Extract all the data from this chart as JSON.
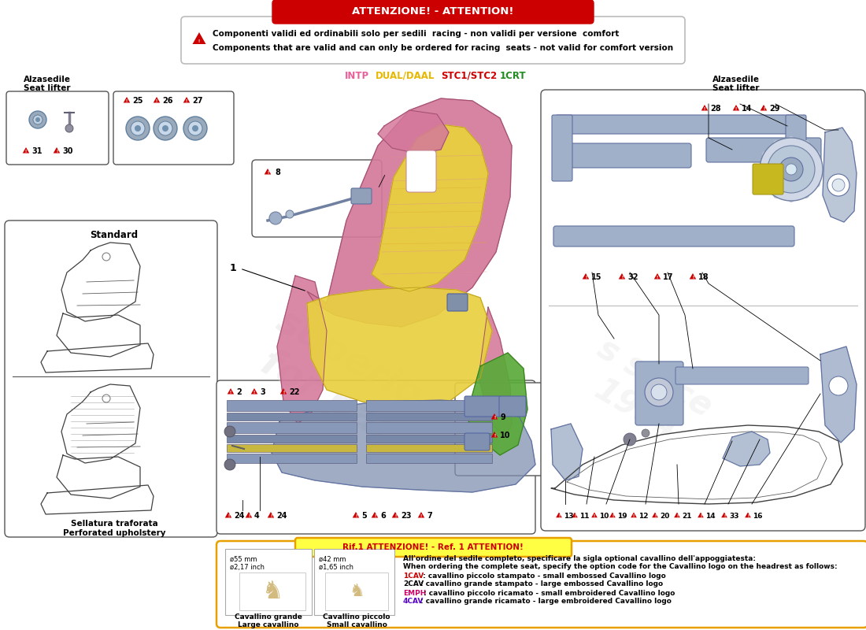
{
  "title_attention": "ATTENZIONE! - ATTENTION!",
  "warning_text_line1": "Componenti validi ed ordinabili solo per sedili  racing - non validi per versione  comfort",
  "warning_text_line2": "Components that are valid and can only be ordered for racing  seats - not valid for comfort version",
  "legend_intp": "INTP",
  "legend_dual": "DUAL/DAAL",
  "legend_stc": "STC1/STC2",
  "legend_1crt": "1CRT",
  "alzasedile_left_1": "Alzasedile",
  "alzasedile_left_2": "Seat lifter",
  "alzasedile_right_1": "Alzasedile",
  "alzasedile_right_2": "Seat lifter",
  "standard_label": "Standard",
  "sellatura_1": "Sellatura traforata",
  "sellatura_2": "Perforated upholstery",
  "ref_attention": "Rif.1 ATTENZIONE! - Ref. 1 ATTENTION!",
  "ref_text1": "All'ordine del sedile completo, specificare la sigla optional cavallino dell'appoggiatesta:",
  "ref_text2": "When ordering the complete seat, specify the option code for the Cavallino logo on the headrest as follows:",
  "ref_1cav_code": "1CAV",
  "ref_1cav_text": " : cavallino piccolo stampato - small embossed Cavallino logo",
  "ref_2cav_code": "2CAV",
  "ref_2cav_text": ": cavallino grande stampato - large embossed Cavallino logo",
  "ref_emph_code": "EMPH",
  "ref_emph_text": ": cavallino piccolo ricamato - small embroidered Cavallino logo",
  "ref_4cav_code": "4CAV",
  "ref_4cav_text": ": cavallino grande ricamato - large embroidered Cavallino logo",
  "dim_55mm_1": "ø55 mm",
  "dim_55mm_2": "ø2,17 inch",
  "dim_42mm_1": "ø42 mm",
  "dim_42mm_2": "ø1,65 inch",
  "cavallino_grande_1": "Cavallino grande",
  "cavallino_grande_2": "Large cavallino",
  "cavallino_piccolo_1": "Cavallino piccolo",
  "cavallino_piccolo_2": "Small cavallino",
  "bg_color": "#ffffff",
  "attention_bg": "#cc0000",
  "intp_color": "#e8609a",
  "dual_color": "#e8b800",
  "stc_color": "#cc0000",
  "crt_color": "#228b22",
  "ref_border": "#e8a000",
  "ref_hdr_bg": "#ffff44",
  "triangle_color": "#cc0000",
  "seat_pink": "#d4789a",
  "seat_yellow": "#e8d040",
  "seat_green": "#5aaa3a",
  "seat_blue_grey": "#8090b0",
  "mech_blue": "#a0b0c8",
  "watermark_color": "#c8c8c8"
}
